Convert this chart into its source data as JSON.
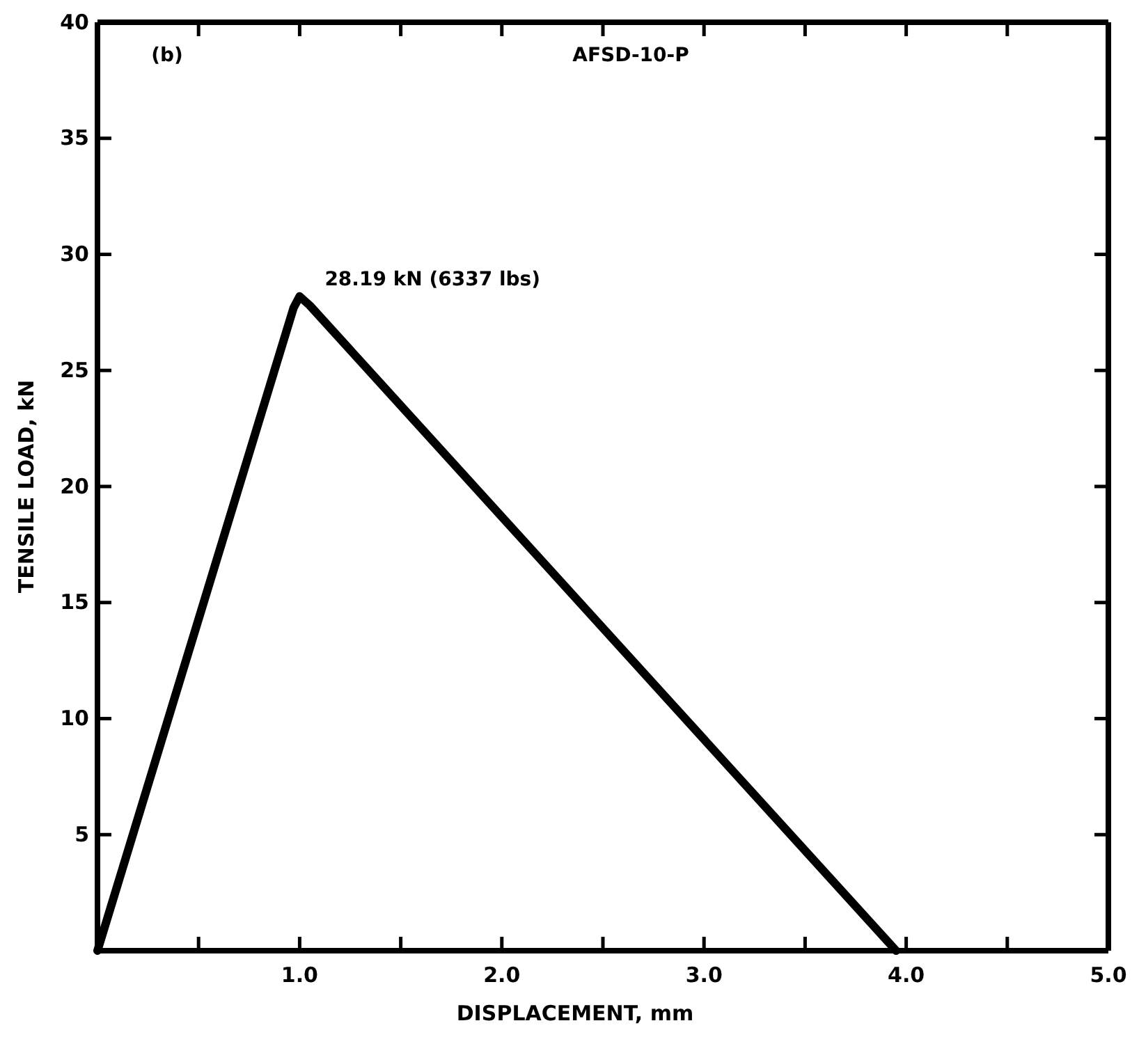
{
  "chart_data": {
    "type": "line",
    "xlabel": "DISPLACEMENT, mm",
    "ylabel": "TENSILE LOAD, kN",
    "annotations": [
      "(b)",
      "AFSD-10-P",
      {
        "text": "28.19 kN (6337 lbs)",
        "x": 1.0,
        "y": 28.19
      }
    ],
    "series": [
      {
        "color": "#000000",
        "x": [
          0,
          0.97,
          1.0,
          1.05,
          3.95
        ],
        "values": [
          0,
          27.7,
          28.19,
          27.8,
          0
        ]
      }
    ],
    "xlim": [
      0,
      5
    ],
    "ylim": [
      0,
      40
    ],
    "xticks": [
      {
        "value": 0.5,
        "label": null
      },
      {
        "value": 1,
        "label": "1.0"
      },
      {
        "value": 1.5,
        "label": null
      },
      {
        "value": 2,
        "label": "2.0"
      },
      {
        "value": 2.5,
        "label": null
      },
      {
        "value": 3,
        "label": "3.0"
      },
      {
        "value": 3.5,
        "label": null
      },
      {
        "value": 4,
        "label": "4.0"
      },
      {
        "value": 4.5,
        "label": null
      },
      {
        "value": 5,
        "label": "5.0"
      }
    ],
    "yticks": [
      5,
      10,
      15,
      20,
      25,
      30,
      35,
      40
    ],
    "marker": "none",
    "line_style": "solid"
  }
}
